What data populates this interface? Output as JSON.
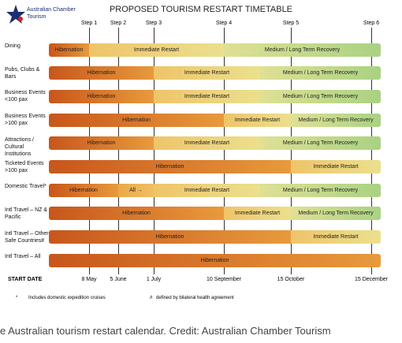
{
  "logo": {
    "line1": "Australian Chamber",
    "line2": "Tourism"
  },
  "title": "PROPOSED TOURISM RESTART TIMETABLE",
  "steps": [
    "Step 1",
    "Step 2",
    "Step 3",
    "Step 4",
    "Step 5",
    "Step 6"
  ],
  "rows": [
    {
      "label": "Dining",
      "phases": [
        "Hibernation",
        "Immediate Restart",
        "Medium / Long Term Recovery"
      ]
    },
    {
      "label": "Pubs, Clubs & Bars",
      "phases": [
        "Hibernation",
        "Immediate Restart",
        "Medium / Long Term Recovery"
      ]
    },
    {
      "label": "Business Events <100 pax",
      "phases": [
        "Hibernation",
        "Immediate Restart",
        "Medium / Long Term Recovery"
      ]
    },
    {
      "label": "Business Events >100 pax",
      "phases": [
        "Hibernation",
        "Immediate Restart",
        "Medium / Long Term Recovery"
      ]
    },
    {
      "label": "Attractions / Cultural Institutions",
      "phases": [
        "Hibernation",
        "Immediate Restart",
        "Medium / Long Term Recovery"
      ]
    },
    {
      "label": "Ticketed Events >100 pax",
      "phases": [
        "Hibernation",
        "Immediate Restart"
      ]
    },
    {
      "label": "Domestic Travel*",
      "phases": [
        "Hibernation",
        "All →",
        "Immediate Restart",
        "Medium / Long Term Recovery"
      ]
    },
    {
      "label": "Intl Travel – NZ & Pacific",
      "phases": [
        "Hibernation",
        "Immediate Restart",
        "Medium / Long Term Recovery"
      ]
    },
    {
      "label": "Intl Travel – Other Safe Countries#",
      "phases": [
        "Hibernation",
        "Immediate Restart"
      ]
    },
    {
      "label": "Intl Travel – All",
      "phases": [
        "Hibernation"
      ]
    }
  ],
  "start_date": {
    "label": "START DATE",
    "dates": [
      "8 May",
      "5 June",
      "1 July",
      "10 September",
      "15 October",
      "15 December"
    ]
  },
  "footnotes": [
    {
      "mark": "*",
      "text": "Includes domestic expedition cruises"
    },
    {
      "mark": "#",
      "text": "defined by bilateral health agreement"
    }
  ],
  "caption": "e Australian tourism restart calendar. Credit: Australian Chamber Tourism"
}
